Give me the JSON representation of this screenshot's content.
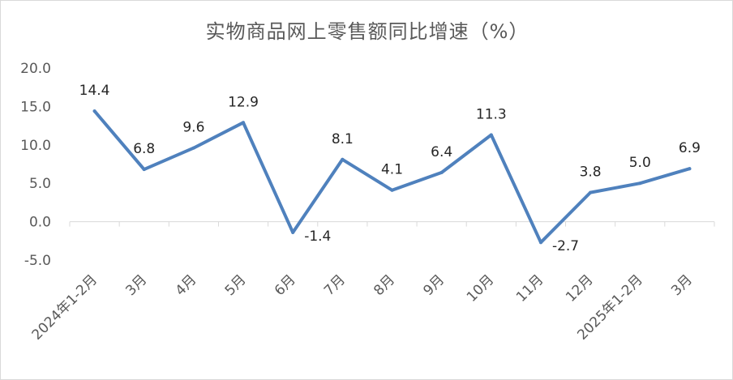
{
  "chart_data": {
    "type": "line",
    "title": "实物商品网上零售额同比增速（%）",
    "categories": [
      "2024年1-2月",
      "3月",
      "4月",
      "5月",
      "6月",
      "7月",
      "8月",
      "9月",
      "10月",
      "11月",
      "12月",
      "2025年1-2月",
      "3月"
    ],
    "values": [
      14.4,
      6.8,
      9.6,
      12.9,
      -1.4,
      8.1,
      4.1,
      6.4,
      11.3,
      -2.7,
      3.8,
      5.0,
      6.9
    ],
    "value_labels": [
      "14.4",
      "6.8",
      "9.6",
      "12.9",
      "-1.4",
      "8.1",
      "4.1",
      "6.4",
      "11.3",
      "-2.7",
      "3.8",
      "5.0",
      "6.9"
    ],
    "y_ticks": [
      20,
      15,
      10,
      5,
      0,
      -5
    ],
    "y_tick_labels": [
      "20.0",
      "15.0",
      "10.0",
      "5.0",
      "0.0",
      "-5.0"
    ],
    "ylim": [
      -5,
      20
    ],
    "xlabel": "",
    "ylabel": "",
    "grid": false,
    "legend": "none",
    "line_color": "#4f81bd"
  }
}
